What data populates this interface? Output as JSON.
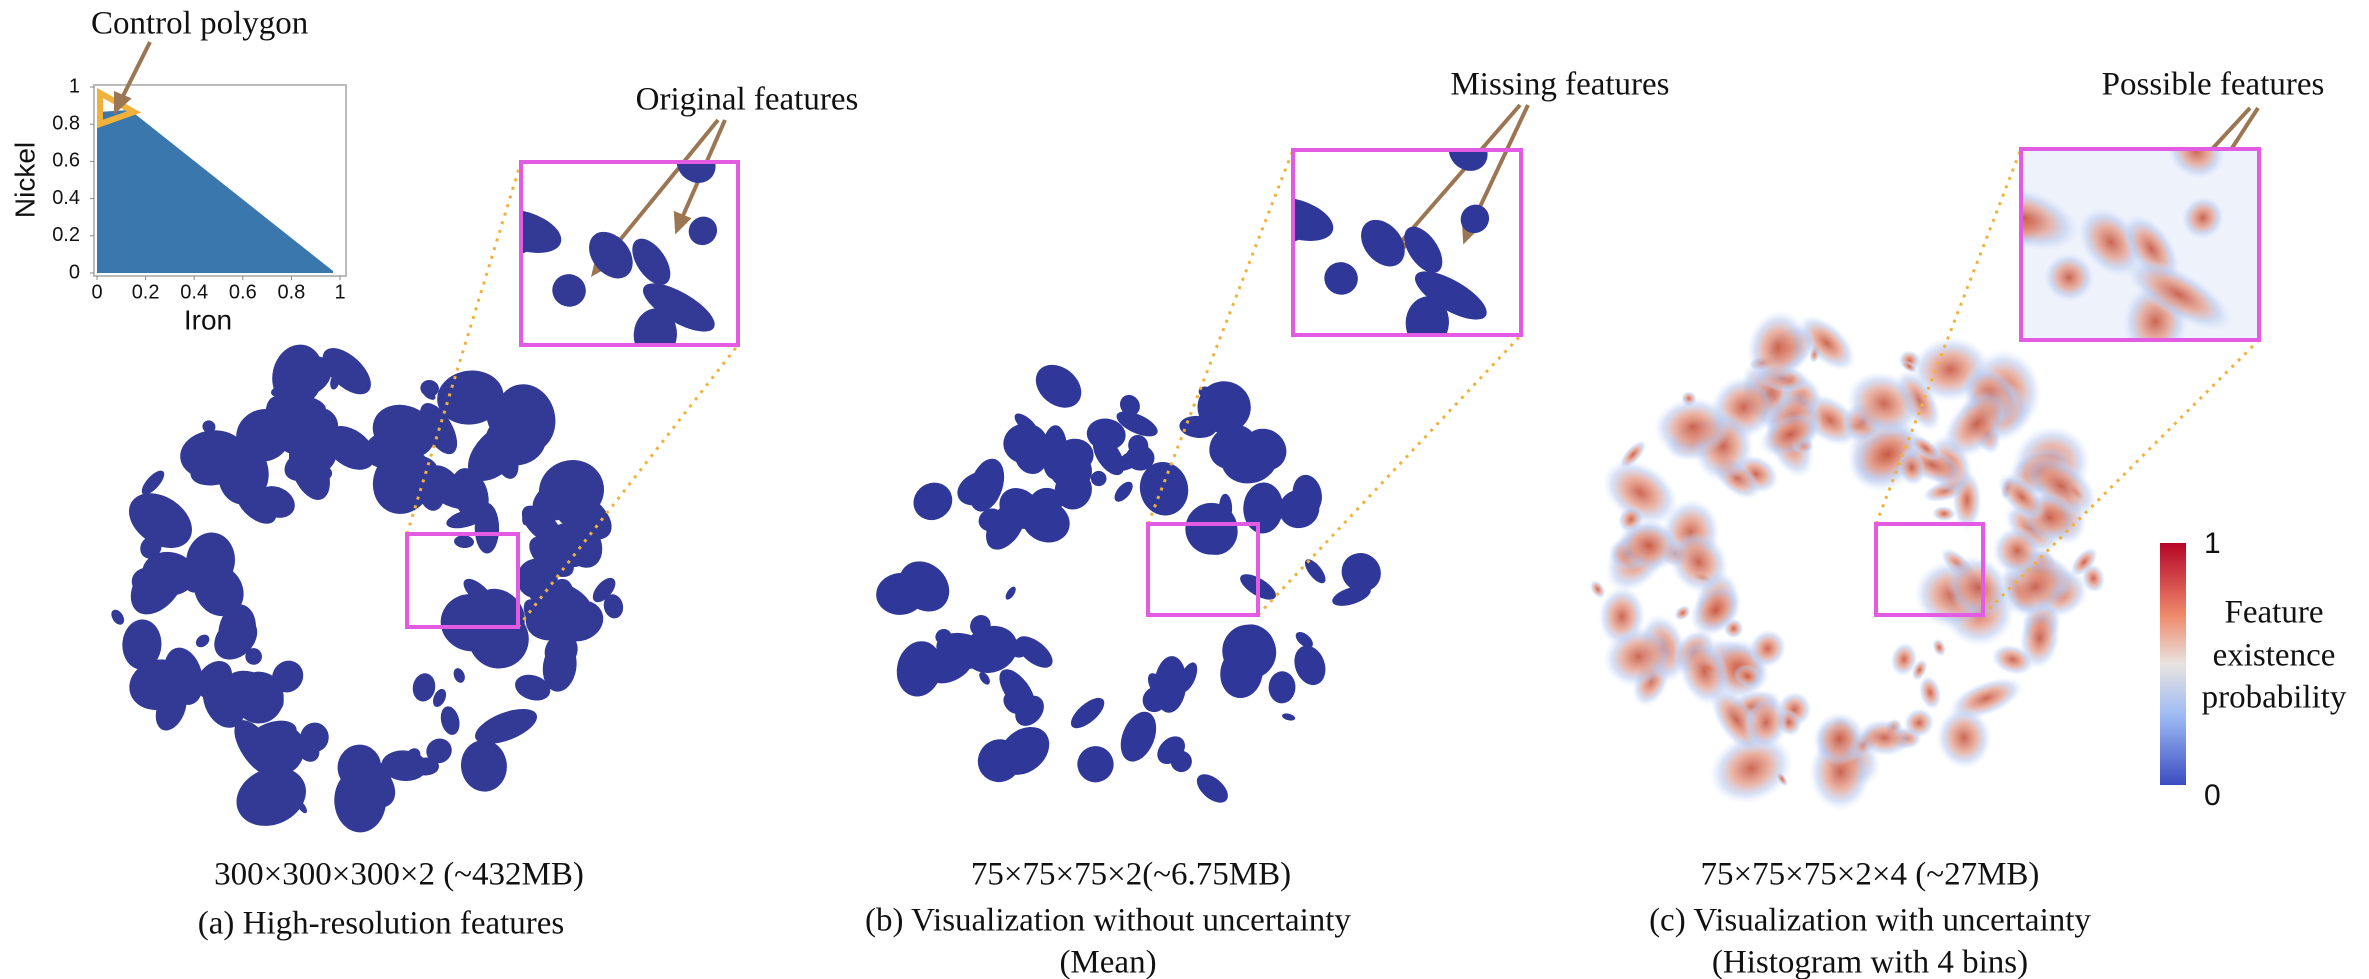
{
  "annotations": {
    "control_polygon": "Control polygon",
    "original": "Original features",
    "missing": "Missing features",
    "possible": "Possible features"
  },
  "inset_plot": {
    "type": "area",
    "xlabel": "Iron",
    "ylabel": "Nickel",
    "xlim": [
      0,
      1
    ],
    "ylim": [
      0,
      1
    ],
    "xticks": [
      0,
      0.2,
      0.4,
      0.6,
      0.8,
      1
    ],
    "yticks": [
      0,
      0.2,
      0.4,
      0.6,
      0.8,
      1
    ]
  },
  "panels": [
    {
      "size": "300×300×300×2 (~432MB)",
      "caption": [
        "(a) High-resolution features"
      ]
    },
    {
      "size": "75×75×75×2(~6.75MB)",
      "caption": [
        "(b) Visualization without uncertainty",
        "(Mean)"
      ]
    },
    {
      "size": "75×75×75×2×4 (~27MB)",
      "caption": [
        "(c) Visualization with uncertainty",
        "(Histogram with 4 bins)"
      ]
    }
  ],
  "colorbar": {
    "max": 1,
    "min": 0,
    "title": [
      "Feature",
      "existence",
      "probability"
    ]
  }
}
